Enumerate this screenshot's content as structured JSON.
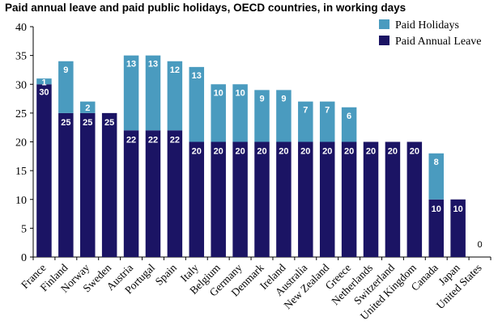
{
  "chart_data": {
    "type": "bar",
    "stacked": true,
    "title": "Paid annual leave and paid public holidays, OECD countries, in working days",
    "categories": [
      "France",
      "Finland",
      "Norway",
      "Sweden",
      "Austria",
      "Portugal",
      "Spain",
      "Italy",
      "Belgium",
      "Germany",
      "Denmark",
      "Ireland",
      "Australia",
      "New Zealand",
      "Greece",
      "Netherlands",
      "Switzerland",
      "United Kingdom",
      "Canada",
      "Japan",
      "United States"
    ],
    "series": [
      {
        "name": "Paid Annual Leave",
        "color": "#1b1464",
        "values": [
          30,
          25,
          25,
          25,
          22,
          22,
          22,
          20,
          20,
          20,
          20,
          20,
          20,
          20,
          20,
          20,
          20,
          20,
          10,
          10,
          0
        ]
      },
      {
        "name": "Paid Holidays",
        "color": "#4a9bbf",
        "values": [
          1,
          9,
          2,
          0,
          13,
          13,
          12,
          13,
          10,
          10,
          9,
          9,
          7,
          7,
          6,
          0,
          0,
          0,
          8,
          0,
          0
        ]
      }
    ],
    "ylim": [
      0,
      40
    ],
    "yticks": [
      0,
      5,
      10,
      15,
      20,
      25,
      30,
      35,
      40
    ],
    "legend": "top-right",
    "grid": false
  }
}
